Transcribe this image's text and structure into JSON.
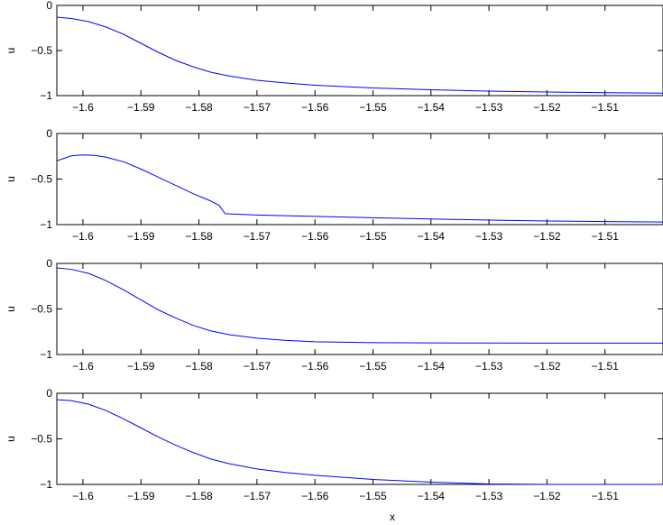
{
  "chart_data": [
    {
      "type": "line",
      "ylabel": "u",
      "xlabel": "",
      "xlim": [
        -1.6045,
        -1.5
      ],
      "ylim": [
        -1,
        0
      ],
      "xticks": [
        -1.6,
        -1.59,
        -1.58,
        -1.57,
        -1.56,
        -1.55,
        -1.54,
        -1.53,
        -1.52,
        -1.51
      ],
      "xtick_labels": [
        "−1.6",
        "−1.59",
        "−1.58",
        "−1.57",
        "−1.56",
        "−1.55",
        "−1.54",
        "−1.53",
        "−1.52",
        "−1.51"
      ],
      "yticks": [
        0,
        -0.5,
        -1
      ],
      "ytick_labels": [
        "0",
        "−0.5",
        "−1"
      ],
      "color": "#0000ff",
      "series": [
        {
          "x": [
            -1.6045,
            -1.602,
            -1.599,
            -1.596,
            -1.593,
            -1.59,
            -1.587,
            -1.584,
            -1.581,
            -1.578,
            -1.575,
            -1.57,
            -1.565,
            -1.56,
            -1.55,
            -1.54,
            -1.53,
            -1.52,
            -1.51,
            -1.5
          ],
          "y": [
            -0.13,
            -0.145,
            -0.18,
            -0.24,
            -0.32,
            -0.42,
            -0.52,
            -0.61,
            -0.68,
            -0.74,
            -0.78,
            -0.83,
            -0.86,
            -0.885,
            -0.915,
            -0.935,
            -0.95,
            -0.96,
            -0.967,
            -0.972
          ]
        }
      ]
    },
    {
      "type": "line",
      "ylabel": "u",
      "xlabel": "",
      "xlim": [
        -1.6045,
        -1.5
      ],
      "ylim": [
        -1,
        0
      ],
      "xticks": [
        -1.6,
        -1.59,
        -1.58,
        -1.57,
        -1.56,
        -1.55,
        -1.54,
        -1.53,
        -1.52,
        -1.51
      ],
      "xtick_labels": [
        "−1.6",
        "−1.59",
        "−1.58",
        "−1.57",
        "−1.56",
        "−1.55",
        "−1.54",
        "−1.53",
        "−1.52",
        "−1.51"
      ],
      "yticks": [
        0,
        -0.5,
        -1
      ],
      "ytick_labels": [
        "0",
        "−0.5",
        "−1"
      ],
      "color": "#0000ff",
      "series": [
        {
          "x": [
            -1.6045,
            -1.602,
            -1.6,
            -1.598,
            -1.596,
            -1.593,
            -1.59,
            -1.587,
            -1.584,
            -1.581,
            -1.578,
            -1.5765,
            -1.5755,
            -1.57,
            -1.56,
            -1.55,
            -1.54,
            -1.53,
            -1.52,
            -1.51,
            -1.5
          ],
          "y": [
            -0.3,
            -0.245,
            -0.235,
            -0.24,
            -0.26,
            -0.31,
            -0.39,
            -0.48,
            -0.57,
            -0.66,
            -0.74,
            -0.79,
            -0.88,
            -0.895,
            -0.91,
            -0.925,
            -0.938,
            -0.95,
            -0.96,
            -0.967,
            -0.972
          ]
        }
      ]
    },
    {
      "type": "line",
      "ylabel": "u",
      "xlabel": "",
      "xlim": [
        -1.6045,
        -1.5
      ],
      "ylim": [
        -1,
        0
      ],
      "xticks": [
        -1.6,
        -1.59,
        -1.58,
        -1.57,
        -1.56,
        -1.55,
        -1.54,
        -1.53,
        -1.52,
        -1.51
      ],
      "xtick_labels": [
        "−1.6",
        "−1.59",
        "−1.58",
        "−1.57",
        "−1.56",
        "−1.55",
        "−1.54",
        "−1.53",
        "−1.52",
        "−1.51"
      ],
      "yticks": [
        0,
        -0.5,
        -1
      ],
      "ytick_labels": [
        "0",
        "−0.5",
        "−1"
      ],
      "color": "#0000ff",
      "series": [
        {
          "x": [
            -1.6045,
            -1.602,
            -1.599,
            -1.596,
            -1.593,
            -1.59,
            -1.587,
            -1.584,
            -1.581,
            -1.578,
            -1.575,
            -1.57,
            -1.565,
            -1.56,
            -1.55,
            -1.54,
            -1.53,
            -1.52,
            -1.51,
            -1.5
          ],
          "y": [
            -0.05,
            -0.065,
            -0.11,
            -0.19,
            -0.29,
            -0.4,
            -0.51,
            -0.6,
            -0.68,
            -0.74,
            -0.78,
            -0.82,
            -0.845,
            -0.86,
            -0.87,
            -0.873,
            -0.874,
            -0.875,
            -0.875,
            -0.875
          ]
        }
      ]
    },
    {
      "type": "line",
      "ylabel": "u",
      "xlabel": "x",
      "xlim": [
        -1.6045,
        -1.5
      ],
      "ylim": [
        -1,
        0
      ],
      "xticks": [
        -1.6,
        -1.59,
        -1.58,
        -1.57,
        -1.56,
        -1.55,
        -1.54,
        -1.53,
        -1.52,
        -1.51
      ],
      "xtick_labels": [
        "−1.6",
        "−1.59",
        "−1.58",
        "−1.57",
        "−1.56",
        "−1.55",
        "−1.54",
        "−1.53",
        "−1.52",
        "−1.51"
      ],
      "yticks": [
        0,
        -0.5,
        -1
      ],
      "ytick_labels": [
        "0",
        "−0.5",
        "−1"
      ],
      "color": "#0000ff",
      "series": [
        {
          "x": [
            -1.6045,
            -1.602,
            -1.599,
            -1.596,
            -1.593,
            -1.59,
            -1.587,
            -1.584,
            -1.581,
            -1.578,
            -1.575,
            -1.57,
            -1.565,
            -1.56,
            -1.55,
            -1.54,
            -1.53,
            -1.52,
            -1.51,
            -1.5
          ],
          "y": [
            -0.07,
            -0.08,
            -0.12,
            -0.19,
            -0.28,
            -0.38,
            -0.48,
            -0.57,
            -0.65,
            -0.72,
            -0.77,
            -0.83,
            -0.87,
            -0.9,
            -0.945,
            -0.975,
            -0.995,
            -1.0,
            -1.0,
            -1.0
          ]
        }
      ]
    }
  ]
}
